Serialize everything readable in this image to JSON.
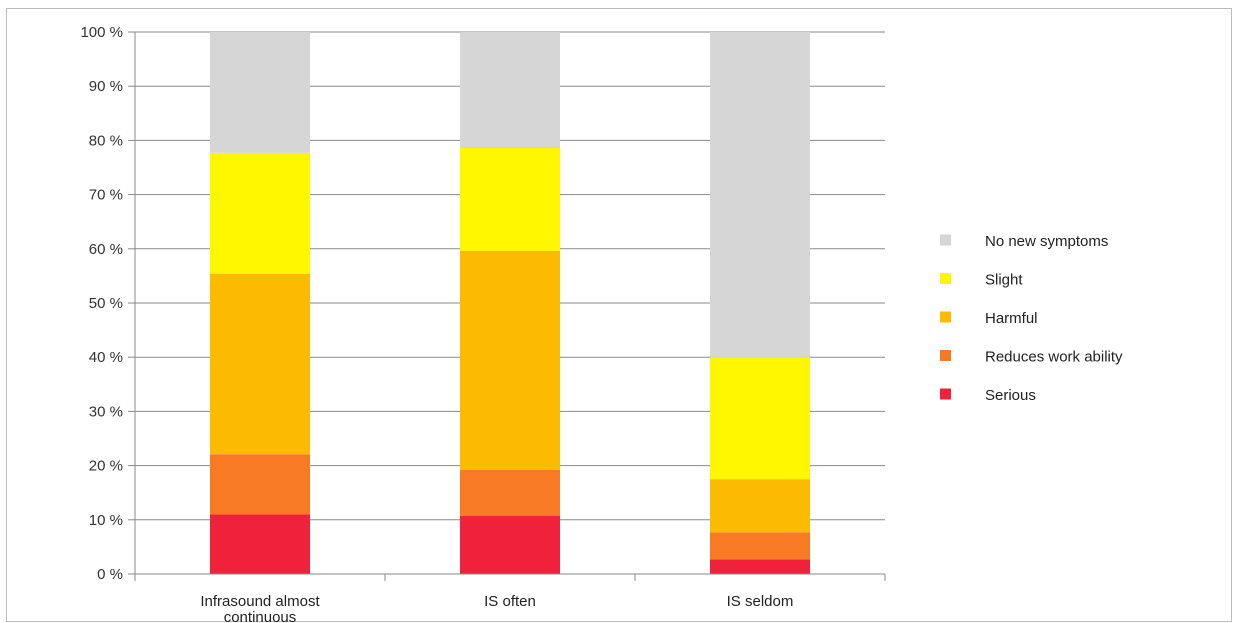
{
  "chart_data": {
    "type": "bar",
    "stacked": true,
    "categories": [
      "Infrasound almost continuous",
      "IS often",
      "IS seldom"
    ],
    "series": [
      {
        "name": "Serious",
        "color": "#f0213a",
        "values": [
          11,
          10.7,
          2.7
        ]
      },
      {
        "name": "Reduces work ability",
        "color": "#f97a25",
        "values": [
          11.1,
          8.5,
          5
        ]
      },
      {
        "name": "Harmful",
        "color": "#fdbb00",
        "values": [
          33.3,
          40.4,
          9.8
        ]
      },
      {
        "name": "Slight",
        "color": "#fff700",
        "values": [
          22.3,
          19,
          22.4
        ]
      },
      {
        "name": "No new symptoms",
        "color": "#d6d6d6",
        "values": [
          22.3,
          21.4,
          60.1
        ]
      }
    ],
    "legend_order": [
      "No new symptoms",
      "Slight",
      "Harmful",
      "Reduces work ability",
      "Serious"
    ],
    "ylim": [
      0,
      100
    ],
    "y_ticks": [
      "0 %",
      "10 %",
      "20 %",
      "30 %",
      "40 %",
      "50 %",
      "60 %",
      "70 %",
      "80 %",
      "90 %",
      "100 %"
    ],
    "grid": true,
    "legend_position": "right",
    "xlabel": "",
    "ylabel": "",
    "title": ""
  }
}
